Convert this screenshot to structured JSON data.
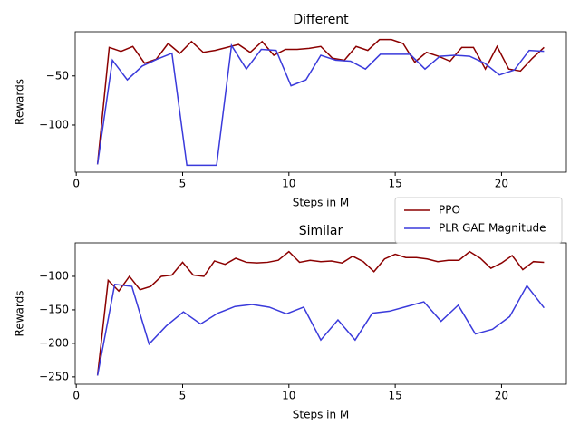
{
  "chart_data": [
    {
      "type": "line",
      "title": "Different",
      "x_label": "Steps in M",
      "y_label": "Rewards",
      "xlim": [
        -0.05,
        23.05
      ],
      "xticks": [
        0,
        5,
        10,
        15,
        20
      ],
      "ylim": [
        -148,
        -5
      ],
      "yticks": [
        {
          "value": -100,
          "label": "−100"
        },
        {
          "value": -50,
          "label": "−50"
        }
      ],
      "series": [
        {
          "color": "#8b0000",
          "x": [
            1,
            1.55,
            2.1,
            2.66,
            3.21,
            3.76,
            4.32,
            4.87,
            5.42,
            5.97,
            6.53,
            7.08,
            7.63,
            8.18,
            8.74,
            9.29,
            9.84,
            10.39,
            10.95,
            11.5,
            12.05,
            12.61,
            13.16,
            13.71,
            14.26,
            14.82,
            15.37,
            15.92,
            16.47,
            17.03,
            17.58,
            18.13,
            18.68,
            19.24,
            19.79,
            20.34,
            20.89,
            21.45,
            22
          ],
          "values": [
            -140,
            -21,
            -25,
            -20,
            -37,
            -33,
            -17,
            -27,
            -15,
            -26,
            -24,
            -21,
            -18,
            -26,
            -15,
            -29,
            -23,
            -23,
            -22,
            -20,
            -32,
            -34,
            -20,
            -24,
            -13,
            -13,
            -17,
            -36,
            -26,
            -30,
            -35,
            -21,
            -21,
            -43,
            -20,
            -43,
            -45,
            -32,
            -21
          ]
        },
        {
          "color": "#3a3adb",
          "x": [
            1,
            1.7,
            2.4,
            3.1,
            3.8,
            4.5,
            5.2,
            5.9,
            6.6,
            7.3,
            8.0,
            8.7,
            9.4,
            10.1,
            10.8,
            11.5,
            12.2,
            12.9,
            13.6,
            14.3,
            15.0,
            15.7,
            16.4,
            17.1,
            17.8,
            18.5,
            19.2,
            19.9,
            20.6,
            21.3,
            22
          ],
          "values": [
            -140,
            -34,
            -54,
            -40,
            -33,
            -27,
            -141,
            -141,
            -141,
            -19,
            -43,
            -23,
            -24,
            -60,
            -54,
            -29,
            -34,
            -35,
            -43,
            -28,
            -28,
            -28,
            -43,
            -30,
            -29,
            -30,
            -37,
            -49,
            -44,
            -24,
            -25
          ]
        }
      ]
    },
    {
      "type": "line",
      "title": "Similar",
      "x_label": "Steps in M",
      "y_label": "Rewards",
      "legend": "upper right",
      "xlim": [
        -0.05,
        23.05
      ],
      "xticks": [
        0,
        5,
        10,
        15,
        20
      ],
      "ylim": [
        -261,
        -50
      ],
      "yticks": [
        {
          "value": -250,
          "label": "−250"
        },
        {
          "value": -200,
          "label": "−200"
        },
        {
          "value": -150,
          "label": "−150"
        },
        {
          "value": -100,
          "label": "−100"
        }
      ],
      "series": [
        {
          "name": "PPO",
          "color": "#8b0000",
          "x": [
            1,
            1.5,
            2,
            2.5,
            3,
            3.5,
            4,
            4.5,
            5,
            5.5,
            6,
            6.5,
            7,
            7.5,
            8,
            8.5,
            9,
            9.5,
            10,
            10.5,
            11,
            11.5,
            12,
            12.5,
            13,
            13.5,
            14,
            14.5,
            15,
            15.5,
            16,
            16.5,
            17,
            17.5,
            18,
            18.5,
            19,
            19.5,
            20,
            20.5,
            21,
            21.5,
            22
          ],
          "values": [
            -248,
            -106,
            -122,
            -100,
            -120,
            -115,
            -100,
            -98,
            -79,
            -98,
            -100,
            -77,
            -82,
            -73,
            -79,
            -80,
            -79,
            -76,
            -63,
            -79,
            -76,
            -78,
            -77,
            -80,
            -70,
            -78,
            -93,
            -74,
            -67,
            -72,
            -72,
            -74,
            -78,
            -76,
            -76,
            -63,
            -73,
            -88,
            -80,
            -69,
            -90,
            -78,
            -79
          ]
        },
        {
          "name": "PLR GAE Magnitude",
          "color": "#3a3adb",
          "x": [
            1,
            1.808,
            2.615,
            3.423,
            4.231,
            5.038,
            5.846,
            6.654,
            7.462,
            8.269,
            9.077,
            9.885,
            10.692,
            11.5,
            12.308,
            13.115,
            13.923,
            14.731,
            15.538,
            16.346,
            17.154,
            17.962,
            18.769,
            19.577,
            20.385,
            21.192,
            22
          ],
          "values": [
            -248,
            -112,
            -115,
            -201,
            -174,
            -153,
            -171,
            -155,
            -145,
            -142,
            -146,
            -156,
            -146,
            -195,
            -165,
            -195,
            -155,
            -152,
            -145,
            -138,
            -167,
            -143,
            -186,
            -179,
            -160,
            -114,
            -147
          ]
        }
      ]
    }
  ]
}
